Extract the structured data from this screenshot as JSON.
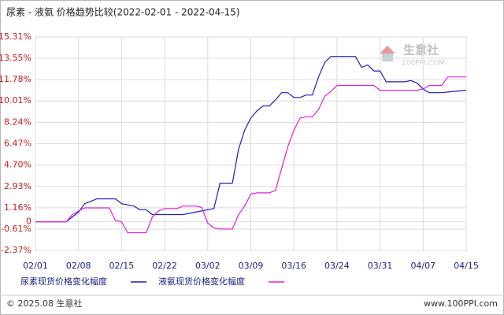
{
  "chart_data": {
    "type": "line",
    "title": "尿素 - 液氨 价格趋势比较(2022-02-01 - 2022-04-15)",
    "categories": [
      "02/01",
      null,
      null,
      null,
      null,
      null,
      null,
      "02/08",
      null,
      null,
      null,
      null,
      null,
      null,
      "02/15",
      null,
      null,
      null,
      null,
      null,
      null,
      "02/22",
      null,
      null,
      null,
      null,
      null,
      null,
      "03/02",
      null,
      null,
      null,
      null,
      null,
      null,
      "03/09",
      null,
      null,
      null,
      null,
      null,
      null,
      "03/16",
      null,
      null,
      null,
      null,
      null,
      null,
      "03/24",
      null,
      null,
      null,
      null,
      null,
      null,
      "03/31",
      null,
      null,
      null,
      null,
      null,
      null,
      "04/07",
      null,
      null,
      null,
      null,
      null,
      null,
      "04/15"
    ],
    "series": [
      {
        "name": "尿素现货价格变化幅度",
        "color": "#1c1cc4",
        "values": [
          0,
          0,
          0,
          0,
          0,
          0,
          0.4,
          0.8,
          1.5,
          1.7,
          1.9,
          1.9,
          1.9,
          1.9,
          1.5,
          1.4,
          1.3,
          1.0,
          1.0,
          0.6,
          0.6,
          0.6,
          0.6,
          0.6,
          0.6,
          0.7,
          0.8,
          0.9,
          1.0,
          1.1,
          3.2,
          3.2,
          3.2,
          6.0,
          7.6,
          8.6,
          9.2,
          9.6,
          9.6,
          10.1,
          10.7,
          10.7,
          10.3,
          10.3,
          10.5,
          10.5,
          12.0,
          13.2,
          13.7,
          13.7,
          13.7,
          13.7,
          13.7,
          12.8,
          13.0,
          12.5,
          12.5,
          11.6,
          11.6,
          11.6,
          11.6,
          11.7,
          11.5,
          11.0,
          10.7,
          10.7,
          10.7,
          10.75,
          10.8,
          10.85,
          10.9
        ]
      },
      {
        "name": "液氨现货价格变化幅度",
        "color": "#e01ee0",
        "values": [
          0,
          0,
          0,
          0,
          0,
          0,
          0.6,
          0.9,
          1.15,
          1.15,
          1.15,
          1.15,
          1.15,
          0.1,
          0.0,
          -0.9,
          -0.9,
          -0.9,
          -0.9,
          0.4,
          0.9,
          1.1,
          1.1,
          1.1,
          1.3,
          1.3,
          1.3,
          1.2,
          -0.1,
          -0.5,
          -0.6,
          -0.6,
          -0.6,
          0.6,
          1.3,
          2.3,
          2.4,
          2.4,
          2.4,
          2.6,
          4.4,
          6.2,
          7.6,
          8.6,
          8.7,
          8.7,
          9.3,
          10.4,
          10.8,
          11.3,
          11.3,
          11.3,
          11.3,
          11.3,
          11.3,
          11.3,
          10.9,
          10.9,
          10.9,
          10.9,
          10.9,
          10.9,
          10.9,
          11.0,
          11.3,
          11.3,
          11.3,
          12.0,
          12.0,
          12.0,
          12.0
        ]
      }
    ],
    "ylim": [
      -2.37,
      15.31
    ],
    "yticks": [
      {
        "value": 15.31,
        "label": "15.31%"
      },
      {
        "value": 13.55,
        "label": "13.55%"
      },
      {
        "value": 11.78,
        "label": "11.78%"
      },
      {
        "value": 10.01,
        "label": "10.01%"
      },
      {
        "value": 8.24,
        "label": "8.24%"
      },
      {
        "value": 6.47,
        "label": "6.47%"
      },
      {
        "value": 4.7,
        "label": "4.70%"
      },
      {
        "value": 2.93,
        "label": "2.93%"
      },
      {
        "value": 1.16,
        "label": "1.16%"
      },
      0,
      {
        "value": -0.61,
        "label": "-0.61%"
      },
      {
        "value": -2.37,
        "label": "-2.37%"
      }
    ],
    "grid": true,
    "watermark": {
      "name": "生意社",
      "site": "100PPI.COM"
    },
    "footer": {
      "left": "© 2025.08 生意社",
      "right": "www.100PPI.com"
    }
  }
}
